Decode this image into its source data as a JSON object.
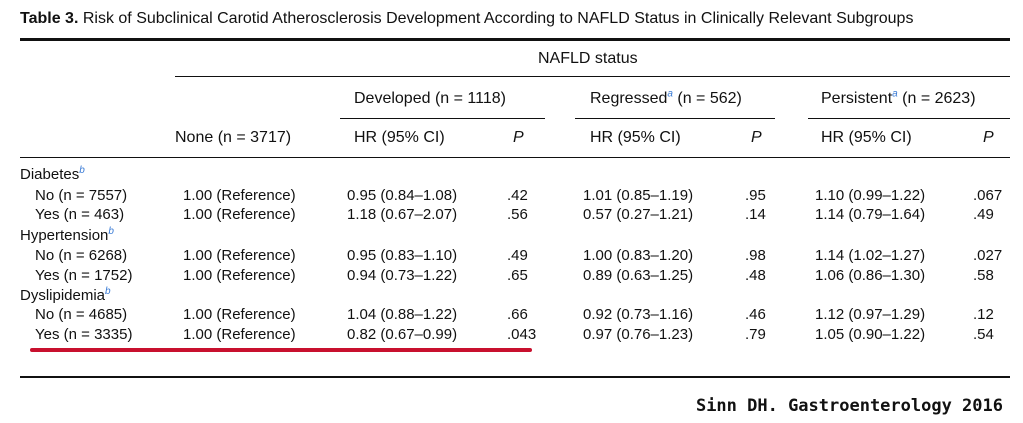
{
  "caption": {
    "label": "Table 3.",
    "text": "Risk of Subclinical Carotid Atherosclerosis Development According to NAFLD Status in Clinically Relevant Subgroups"
  },
  "header": {
    "group_title": "NAFLD status",
    "developed": "Developed (n = 1118)",
    "regressed_name": "Regressed",
    "regressed_n": " (n = 562)",
    "persistent_name": "Persistent",
    "persistent_n": " (n = 2623)",
    "footnote_a": "a",
    "none": "None (n = 3717)",
    "hr_label": "HR (95% CI)",
    "p_label": "P"
  },
  "groups": [
    {
      "label": "Diabetes",
      "footnote": "b",
      "rows": [
        {
          "label": "No (n = 7557)",
          "none": "1.00 (Reference)",
          "dev_hr": "0.95 (0.84–1.08)",
          "dev_p": ".42",
          "reg_hr": "1.01 (0.85–1.19)",
          "reg_p": ".95",
          "per_hr": "1.10 (0.99–1.22)",
          "per_p": ".067"
        },
        {
          "label": "Yes (n = 463)",
          "none": "1.00 (Reference)",
          "dev_hr": "1.18 (0.67–2.07)",
          "dev_p": ".56",
          "reg_hr": "0.57 (0.27–1.21)",
          "reg_p": ".14",
          "per_hr": "1.14 (0.79–1.64)",
          "per_p": ".49"
        }
      ]
    },
    {
      "label": "Hypertension",
      "footnote": "b",
      "rows": [
        {
          "label": "No (n = 6268)",
          "none": "1.00 (Reference)",
          "dev_hr": "0.95 (0.83–1.10)",
          "dev_p": ".49",
          "reg_hr": "1.00 (0.83–1.20)",
          "reg_p": ".98",
          "per_hr": "1.14 (1.02–1.27)",
          "per_p": ".027"
        },
        {
          "label": "Yes (n = 1752)",
          "none": "1.00 (Reference)",
          "dev_hr": "0.94 (0.73–1.22)",
          "dev_p": ".65",
          "reg_hr": "0.89 (0.63–1.25)",
          "reg_p": ".48",
          "per_hr": "1.06 (0.86–1.30)",
          "per_p": ".58"
        }
      ]
    },
    {
      "label": "Dyslipidemia",
      "footnote": "b",
      "rows": [
        {
          "label": "No (n = 4685)",
          "none": "1.00 (Reference)",
          "dev_hr": "1.04 (0.88–1.22)",
          "dev_p": ".66",
          "reg_hr": "0.92 (0.73–1.16)",
          "reg_p": ".46",
          "per_hr": "1.12 (0.97–1.29)",
          "per_p": ".12"
        },
        {
          "label": "Yes (n = 3335)",
          "none": "1.00 (Reference)",
          "dev_hr": "0.82 (0.67–0.99)",
          "dev_p": ".043",
          "reg_hr": "0.97 (0.76–1.23)",
          "reg_p": ".79",
          "per_hr": "1.05 (0.90–1.22)",
          "per_p": ".54"
        }
      ]
    }
  ],
  "highlight_color": "#c8102e",
  "credit": "Sinn DH. Gastroenterology 2016"
}
